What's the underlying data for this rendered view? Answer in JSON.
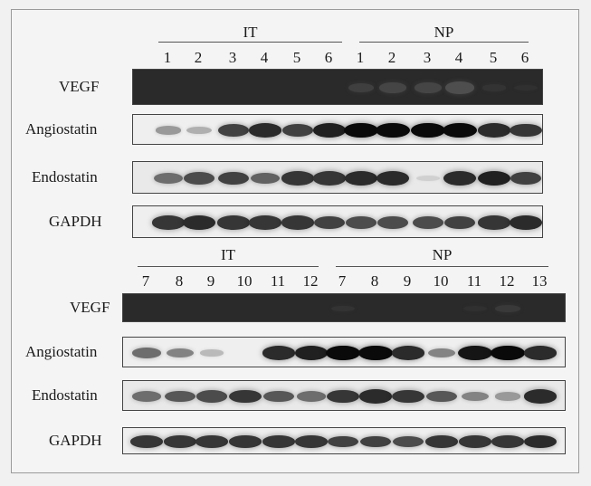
{
  "figure": {
    "panels": [
      {
        "groups": [
          {
            "label": "IT",
            "lanes": [
              "1",
              "2",
              "3",
              "4",
              "5",
              "6"
            ]
          },
          {
            "label": "NP",
            "lanes": [
              "1",
              "2",
              "3",
              "4",
              "5",
              "6"
            ]
          }
        ],
        "rows": [
          {
            "label": "VEGF",
            "bg": "#2a2a2a"
          },
          {
            "label": "Angiostatin",
            "bg": "#efefef"
          },
          {
            "label": "Endostatin",
            "bg": "#e9e9e9"
          },
          {
            "label": "GAPDH",
            "bg": "#efefef"
          }
        ],
        "intensities": {
          "VEGF": [
            0,
            0,
            0,
            0,
            0,
            0,
            0.35,
            0.45,
            0.45,
            0.6,
            0.15,
            0.1
          ],
          "Angiostatin": [
            0.35,
            0.25,
            0.75,
            0.85,
            0.75,
            0.9,
            1,
            1,
            1,
            1,
            0.85,
            0.8
          ],
          "Endostatin": [
            0.55,
            0.7,
            0.75,
            0.6,
            0.8,
            0.8,
            0.85,
            0.85,
            0.1,
            0.85,
            0.9,
            0.75
          ],
          "GAPDH": [
            0.8,
            0.85,
            0.8,
            0.8,
            0.8,
            0.75,
            0.7,
            0.7,
            0.7,
            0.75,
            0.8,
            0.85
          ]
        }
      },
      {
        "groups": [
          {
            "label": "IT",
            "lanes": [
              "7",
              "8",
              "9",
              "10",
              "11",
              "12"
            ]
          },
          {
            "label": "NP",
            "lanes": [
              "7",
              "8",
              "9",
              "10",
              "11",
              "12",
              "13"
            ]
          }
        ],
        "rows": [
          {
            "label": "VEGF",
            "bg": "#2a2a2a"
          },
          {
            "label": "Angiostatin",
            "bg": "#efefef"
          },
          {
            "label": "Endostatin",
            "bg": "#e9e9e9"
          },
          {
            "label": "GAPDH",
            "bg": "#efefef"
          }
        ],
        "intensities": {
          "VEGF": [
            0,
            0,
            0,
            0,
            0,
            0,
            0.15,
            0,
            0,
            0,
            0.1,
            0.25,
            0
          ],
          "Angiostatin": [
            0.55,
            0.45,
            0.2,
            0,
            0.85,
            0.9,
            1,
            1,
            0.85,
            0.45,
            0.95,
            1,
            0.85
          ],
          "Endostatin": [
            0.55,
            0.65,
            0.7,
            0.8,
            0.65,
            0.55,
            0.8,
            0.85,
            0.8,
            0.65,
            0.45,
            0.35,
            0.85
          ],
          "GAPDH": [
            0.8,
            0.8,
            0.8,
            0.8,
            0.8,
            0.8,
            0.75,
            0.75,
            0.7,
            0.8,
            0.8,
            0.8,
            0.85
          ]
        }
      }
    ]
  }
}
